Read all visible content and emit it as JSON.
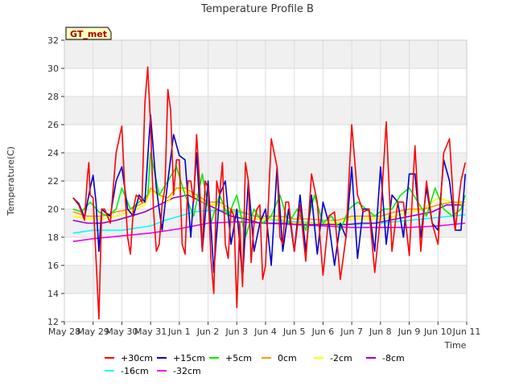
{
  "chart_data": {
    "type": "line",
    "title": "Temperature Profile B",
    "xlabel": "Time",
    "ylabel": "Temperature(C)",
    "badge": "GT_met",
    "ylim": [
      12,
      32
    ],
    "yticks": [
      12,
      14,
      16,
      18,
      20,
      22,
      24,
      26,
      28,
      30,
      32
    ],
    "xlim": [
      0,
      14
    ],
    "xticks": [
      {
        "x": 0,
        "label": "May 28"
      },
      {
        "x": 1,
        "label": "May 29"
      },
      {
        "x": 2,
        "label": "May 30"
      },
      {
        "x": 3,
        "label": "May 31"
      },
      {
        "x": 4,
        "label": "Jun 1"
      },
      {
        "x": 5,
        "label": "Jun 2"
      },
      {
        "x": 6,
        "label": "Jun 3"
      },
      {
        "x": 7,
        "label": "Jun 4"
      },
      {
        "x": 8,
        "label": "Jun 5"
      },
      {
        "x": 9,
        "label": "Jun 6"
      },
      {
        "x": 10,
        "label": "Jun 7"
      },
      {
        "x": 11,
        "label": "Jun 8"
      },
      {
        "x": 12,
        "label": "Jun 9"
      },
      {
        "x": 13,
        "label": "Jun 10"
      },
      {
        "x": 14,
        "label": "Jun 11"
      }
    ],
    "grid": true,
    "legend_position": "bottom",
    "series": [
      {
        "name": "+30cm",
        "color": "#ff0000",
        "x": [
          0.3,
          0.5,
          0.7,
          0.8,
          0.85,
          0.9,
          1.0,
          1.1,
          1.2,
          1.3,
          1.4,
          1.5,
          1.6,
          1.8,
          2.0,
          2.1,
          2.2,
          2.3,
          2.4,
          2.5,
          2.6,
          2.7,
          2.8,
          2.9,
          3.0,
          3.1,
          3.2,
          3.3,
          3.4,
          3.5,
          3.6,
          3.7,
          3.8,
          3.9,
          4.0,
          4.1,
          4.2,
          4.3,
          4.4,
          4.5,
          4.6,
          4.7,
          4.8,
          4.9,
          5.0,
          5.1,
          5.2,
          5.3,
          5.4,
          5.5,
          5.6,
          5.7,
          5.8,
          5.9,
          6.0,
          6.1,
          6.2,
          6.3,
          6.4,
          6.5,
          6.6,
          6.7,
          6.8,
          6.9,
          7.0,
          7.2,
          7.4,
          7.5,
          7.6,
          7.7,
          7.8,
          8.0,
          8.2,
          8.4,
          8.6,
          8.8,
          9.0,
          9.2,
          9.4,
          9.6,
          9.8,
          10.0,
          10.2,
          10.4,
          10.6,
          10.8,
          11.0,
          11.2,
          11.4,
          11.6,
          11.8,
          12.0,
          12.2,
          12.4,
          12.6,
          12.8,
          13.0,
          13.2,
          13.4,
          13.6,
          13.8,
          13.95
        ],
        "values": [
          20.8,
          20.3,
          19.2,
          22.3,
          23.3,
          21.0,
          20.8,
          16.5,
          12.2,
          20.0,
          20.0,
          19.5,
          19.0,
          24.0,
          25.9,
          21.5,
          18.0,
          16.8,
          20.0,
          21.0,
          20.8,
          20.5,
          27.5,
          30.1,
          26.0,
          20.0,
          17.0,
          17.5,
          20.3,
          21.5,
          28.5,
          27.0,
          21.0,
          23.5,
          23.5,
          17.5,
          16.8,
          22.0,
          22.0,
          20.5,
          25.3,
          22.0,
          17.0,
          22.0,
          21.5,
          16.5,
          14.0,
          22.0,
          21.0,
          23.3,
          17.5,
          16.5,
          20.0,
          19.5,
          13.0,
          19.0,
          14.5,
          23.3,
          22.0,
          16.2,
          19.0,
          20.0,
          20.3,
          15.0,
          16.0,
          25.0,
          23.0,
          18.0,
          17.5,
          20.5,
          20.5,
          17.0,
          20.3,
          16.3,
          22.5,
          20.5,
          15.3,
          19.5,
          19.8,
          15.0,
          18.0,
          26.0,
          21.0,
          19.8,
          20.0,
          15.5,
          19.5,
          26.2,
          17.0,
          20.5,
          20.5,
          16.7,
          24.5,
          17.0,
          22.0,
          19.0,
          17.5,
          24.0,
          25.0,
          18.5,
          22.0,
          23.3
        ]
      },
      {
        "name": "+15cm",
        "color": "#0000cc",
        "x": [
          0.3,
          0.5,
          0.7,
          0.9,
          1.0,
          1.1,
          1.2,
          1.3,
          1.4,
          1.6,
          1.8,
          2.0,
          2.2,
          2.4,
          2.6,
          2.8,
          3.0,
          3.2,
          3.4,
          3.6,
          3.8,
          4.0,
          4.2,
          4.4,
          4.6,
          4.8,
          5.0,
          5.2,
          5.4,
          5.6,
          5.8,
          6.0,
          6.2,
          6.4,
          6.6,
          6.8,
          7.0,
          7.2,
          7.4,
          7.6,
          7.8,
          8.0,
          8.2,
          8.4,
          8.6,
          8.8,
          9.0,
          9.2,
          9.4,
          9.6,
          9.8,
          10.0,
          10.2,
          10.4,
          10.6,
          10.8,
          11.0,
          11.2,
          11.4,
          11.6,
          11.8,
          12.0,
          12.2,
          12.4,
          12.6,
          12.8,
          13.0,
          13.2,
          13.4,
          13.6,
          13.8,
          13.95
        ],
        "values": [
          20.8,
          20.4,
          19.4,
          21.5,
          22.4,
          20.5,
          17.0,
          20.0,
          19.8,
          19.5,
          22.0,
          23.0,
          20.0,
          19.5,
          21.0,
          20.5,
          26.7,
          21.5,
          18.5,
          22.0,
          25.3,
          23.8,
          23.5,
          18.0,
          24.0,
          17.0,
          22.0,
          15.5,
          21.0,
          22.0,
          17.5,
          20.0,
          15.0,
          22.0,
          17.0,
          19.0,
          20.0,
          16.0,
          23.0,
          17.0,
          20.0,
          17.0,
          21.0,
          17.0,
          21.0,
          16.8,
          20.5,
          19.0,
          16.0,
          19.0,
          18.0,
          23.0,
          16.5,
          20.0,
          20.0,
          17.0,
          23.0,
          17.5,
          21.0,
          20.5,
          18.0,
          22.5,
          22.5,
          18.0,
          21.5,
          19.0,
          18.5,
          23.5,
          22.0,
          18.5,
          18.5,
          22.5
        ]
      },
      {
        "name": "+5cm",
        "color": "#00ee00",
        "x": [
          0.3,
          0.6,
          0.9,
          1.2,
          1.5,
          1.8,
          2.0,
          2.3,
          2.6,
          2.9,
          3.0,
          3.3,
          3.6,
          3.9,
          4.2,
          4.5,
          4.8,
          5.1,
          5.4,
          5.7,
          6.0,
          6.3,
          6.6,
          6.9,
          7.2,
          7.5,
          7.8,
          8.1,
          8.4,
          8.7,
          9.0,
          9.3,
          9.6,
          9.9,
          10.2,
          10.5,
          10.8,
          11.1,
          11.4,
          11.7,
          12.0,
          12.3,
          12.6,
          12.9,
          13.2,
          13.5,
          13.8,
          13.95
        ],
        "values": [
          20.0,
          19.8,
          20.5,
          19.8,
          19.5,
          20.0,
          21.5,
          20.0,
          20.5,
          21.0,
          24.0,
          21.0,
          22.0,
          23.0,
          21.0,
          19.5,
          22.5,
          19.0,
          21.0,
          19.5,
          21.0,
          18.0,
          20.0,
          19.0,
          19.5,
          21.0,
          19.0,
          20.0,
          18.5,
          21.0,
          19.0,
          19.5,
          18.5,
          20.0,
          20.5,
          20.0,
          19.5,
          20.0,
          20.0,
          21.0,
          21.5,
          20.5,
          19.5,
          21.5,
          20.0,
          19.5,
          20.0,
          21.0
        ]
      },
      {
        "name": "0cm",
        "color": "#ff9900",
        "x": [
          0.3,
          0.8,
          1.3,
          1.8,
          2.3,
          2.8,
          3.0,
          3.3,
          3.6,
          3.9,
          4.2,
          4.6,
          5.0,
          5.4,
          5.8,
          6.2,
          6.6,
          7.0,
          7.5,
          8.0,
          8.5,
          9.0,
          9.5,
          10.0,
          10.5,
          11.0,
          11.5,
          12.0,
          12.5,
          13.0,
          13.5,
          13.95
        ],
        "values": [
          19.8,
          19.5,
          19.5,
          19.8,
          20.0,
          20.5,
          21.5,
          21.0,
          20.8,
          21.5,
          21.5,
          21.0,
          20.5,
          20.5,
          20.0,
          19.8,
          19.5,
          19.5,
          19.5,
          19.3,
          19.3,
          19.2,
          19.2,
          19.5,
          19.5,
          19.5,
          19.8,
          20.0,
          20.0,
          20.3,
          20.5,
          20.5
        ]
      },
      {
        "name": "-2cm",
        "color": "#ffff00",
        "x": [
          0.3,
          0.8,
          1.3,
          1.8,
          2.3,
          2.8,
          3.0,
          3.3,
          3.6,
          3.9,
          4.2,
          4.6,
          5.0,
          5.4,
          5.8,
          6.2,
          6.6,
          7.0,
          7.5,
          8.0,
          8.5,
          9.0,
          9.5,
          10.0,
          10.5,
          11.0,
          11.5,
          12.0,
          12.5,
          13.0,
          13.5,
          13.95
        ],
        "values": [
          19.5,
          19.3,
          19.3,
          19.5,
          19.8,
          20.3,
          21.3,
          21.0,
          20.5,
          21.5,
          21.3,
          20.8,
          20.3,
          20.3,
          19.8,
          19.5,
          19.3,
          19.3,
          19.3,
          19.0,
          19.0,
          19.0,
          19.0,
          19.3,
          19.3,
          19.3,
          19.5,
          19.8,
          20.0,
          20.8,
          20.5,
          20.3
        ]
      },
      {
        "name": "-8cm",
        "color": "#9900cc",
        "x": [
          0.3,
          0.8,
          1.3,
          1.8,
          2.3,
          2.8,
          3.3,
          3.8,
          4.3,
          4.8,
          5.3,
          5.8,
          6.3,
          6.8,
          7.3,
          7.8,
          8.3,
          8.8,
          9.3,
          9.8,
          10.3,
          10.8,
          11.3,
          11.8,
          12.3,
          12.8,
          13.3,
          13.95
        ],
        "values": [
          19.2,
          19.0,
          19.0,
          19.2,
          19.5,
          19.8,
          20.3,
          20.8,
          21.0,
          20.5,
          20.0,
          19.5,
          19.3,
          19.0,
          19.0,
          19.0,
          18.9,
          18.9,
          18.9,
          18.9,
          19.0,
          19.0,
          19.2,
          19.4,
          19.6,
          19.8,
          20.3,
          20.3
        ]
      },
      {
        "name": "-16cm",
        "color": "#00ffff",
        "x": [
          0.3,
          1.0,
          2.0,
          3.0,
          3.5,
          4.0,
          4.5,
          5.0,
          5.5,
          6.0,
          6.5,
          7.0,
          8.0,
          9.0,
          10.0,
          11.0,
          12.0,
          13.0,
          13.95
        ],
        "values": [
          18.3,
          18.5,
          18.5,
          18.8,
          19.2,
          19.5,
          19.8,
          19.9,
          19.9,
          19.8,
          19.6,
          19.3,
          19.1,
          19.0,
          18.9,
          19.0,
          19.2,
          19.4,
          19.6
        ]
      },
      {
        "name": "-32cm",
        "color": "#ee00ee",
        "x": [
          0.3,
          1.0,
          2.0,
          3.0,
          4.0,
          5.0,
          6.0,
          7.0,
          8.0,
          9.0,
          10.0,
          11.0,
          12.0,
          13.0,
          13.95
        ],
        "values": [
          17.7,
          17.9,
          18.1,
          18.3,
          18.6,
          19.0,
          19.1,
          19.0,
          18.9,
          18.8,
          18.7,
          18.7,
          18.7,
          18.8,
          19.0
        ]
      }
    ]
  }
}
